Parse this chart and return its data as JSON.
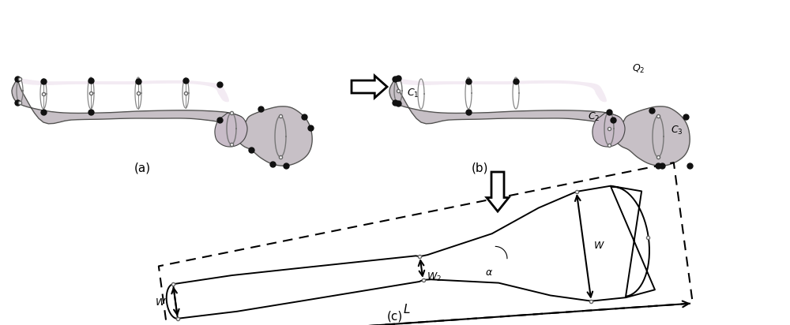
{
  "fig_width": 10.0,
  "fig_height": 4.12,
  "bg_color": "#ffffff",
  "panel_a_label": "(a)",
  "panel_b_label": "(b)",
  "panel_c_label": "(c)",
  "bone_fill": "#d4c8d8",
  "bone_edge": "#444444",
  "bone_pink": "#e8c0d8",
  "bone_green": "#b8d4b8",
  "ctrl_dot": "#111111",
  "open_dot_edge": "#666666",
  "label_C1": "C",
  "label_C1_sub": "1",
  "label_C2": "C",
  "label_C2_sub": "2",
  "label_C3": "C",
  "label_C3_sub": "3",
  "label_Q2": "Q",
  "label_Q2_sub": "2",
  "label_L": "L",
  "label_W": "W",
  "label_W1": "W",
  "label_W2": "W",
  "label_W2_sub": "2",
  "label_alpha": "α"
}
